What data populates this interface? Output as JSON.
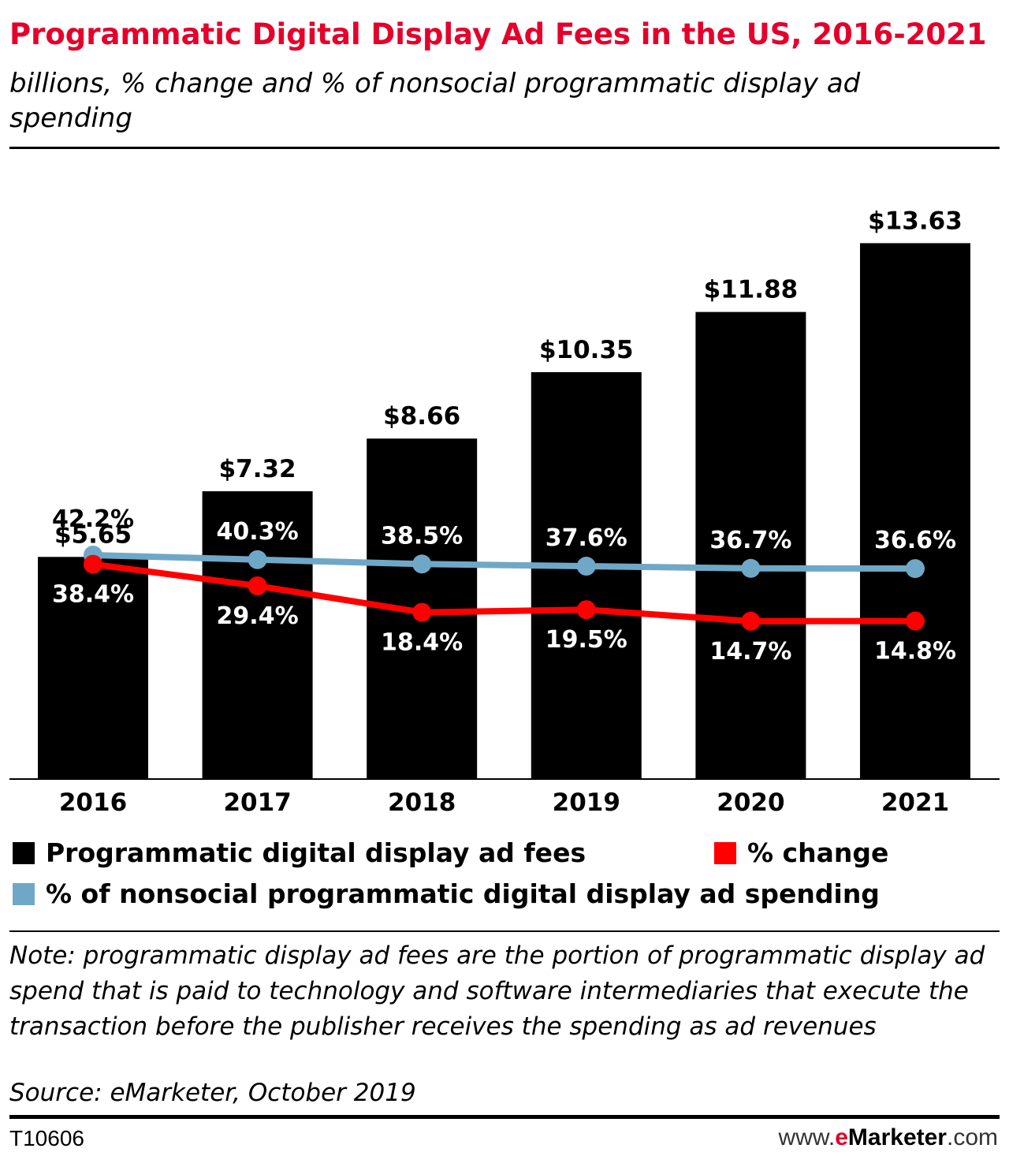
{
  "title": "Programmatic Digital Display Ad Fees in the US, 2016-2021",
  "subtitle": "billions, % change and % of nonsocial programmatic display ad spending",
  "colors": {
    "title": "#e4002b",
    "bars": "#000000",
    "change_line": "#ff0000",
    "share_line": "#6fa8c7",
    "bar_label_text": "#000000",
    "in_bar_text": "#ffffff"
  },
  "chart_data": {
    "type": "bar",
    "categories": [
      "2016",
      "2017",
      "2018",
      "2019",
      "2020",
      "2021"
    ],
    "series": [
      {
        "name": "Programmatic digital display ad fees",
        "type": "bar",
        "values": [
          5.65,
          7.32,
          8.66,
          10.35,
          11.88,
          13.63
        ],
        "labels": [
          "$5.65",
          "$7.32",
          "$8.66",
          "$10.35",
          "$11.88",
          "$13.63"
        ]
      },
      {
        "name": "% change",
        "type": "line",
        "values": [
          38.4,
          29.4,
          18.4,
          19.5,
          14.7,
          14.8
        ],
        "labels": [
          "38.4%",
          "29.4%",
          "18.4%",
          "19.5%",
          "14.7%",
          "14.8%"
        ]
      },
      {
        "name": "% of nonsocial programmatic digital display ad spending",
        "type": "line",
        "values": [
          42.2,
          40.3,
          38.5,
          37.6,
          36.7,
          36.6
        ],
        "labels": [
          "42.2%",
          "40.3%",
          "38.5%",
          "37.6%",
          "36.7%",
          "36.6%"
        ]
      }
    ],
    "ylim": [
      0,
      14.4
    ],
    "grid": false,
    "legend_position": "bottom"
  },
  "legend": {
    "fees": "Programmatic digital display ad fees",
    "change": "% change",
    "share": "% of nonsocial programmatic digital display ad spending"
  },
  "note": "Note: programmatic display ad fees are the portion of programmatic display ad spend that is paid to technology and software intermediaries that execute the transaction before the publisher receives the spending as ad revenues",
  "source": "Source: eMarketer, October 2019",
  "footer": {
    "chart_id": "T10606",
    "brand_prefix": "www.",
    "brand_e": "e",
    "brand_name": "Marketer",
    "brand_suffix": ".com"
  }
}
